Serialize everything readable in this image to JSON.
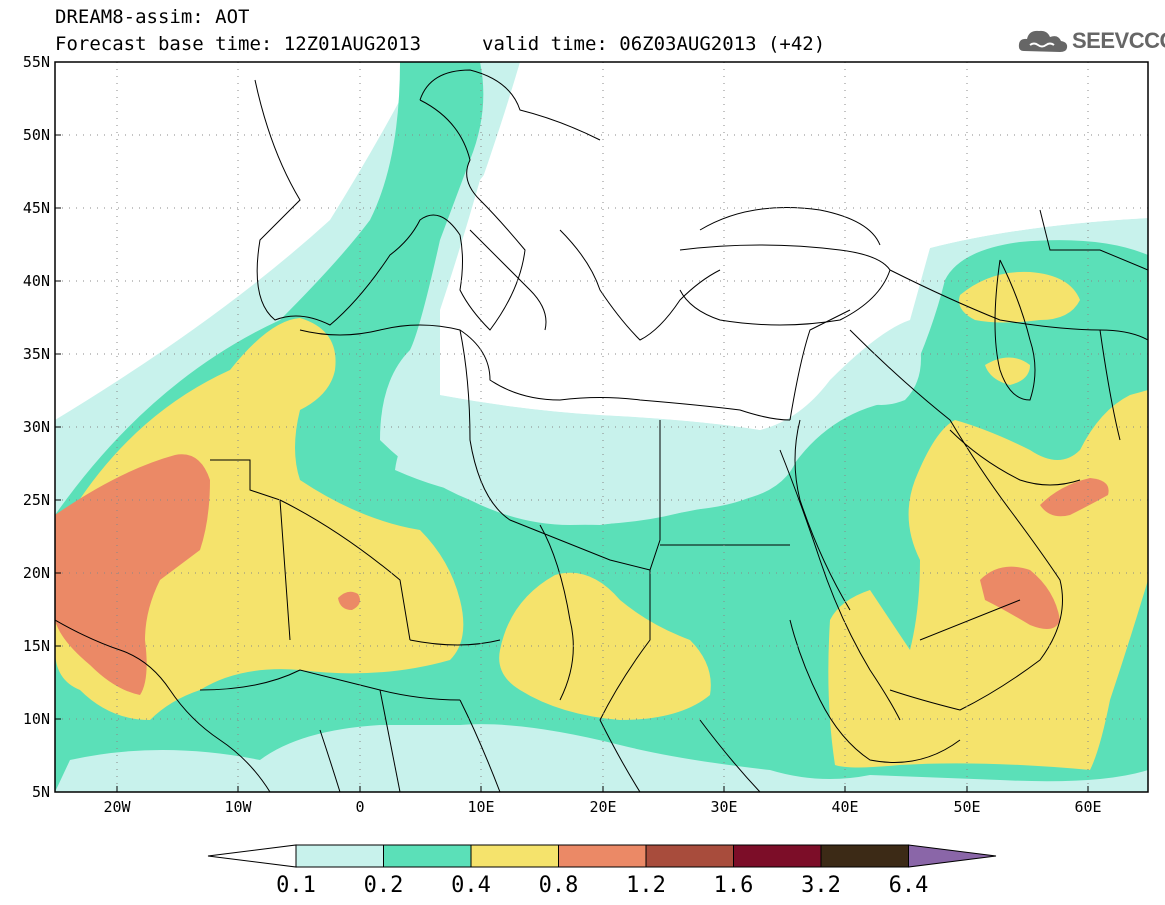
{
  "header": {
    "line1": "DREAM8-assim: AOT",
    "line2": "Forecast base time: 12Z01AUG2013",
    "line3": "valid time: 06Z03AUG2013 (+42)"
  },
  "logo": {
    "text": "SEEVCCC",
    "icon": "cloud-icon"
  },
  "map": {
    "lon_range": [
      -25,
      65
    ],
    "lat_range": [
      5,
      55
    ],
    "lon_ticks": [
      "20W",
      "10W",
      "0",
      "10E",
      "20E",
      "30E",
      "40E",
      "50E",
      "60E"
    ],
    "lat_ticks": [
      "55N",
      "50N",
      "45N",
      "40N",
      "35N",
      "30N",
      "25N",
      "20N",
      "15N",
      "10N",
      "5N"
    ],
    "grid": "dotted"
  },
  "colorbar": {
    "labels": [
      "0.1",
      "0.2",
      "0.4",
      "0.8",
      "1.2",
      "1.6",
      "3.2",
      "6.4"
    ],
    "colors": [
      "#ffffff",
      "#c8f2ec",
      "#5be0b8",
      "#f5e36c",
      "#eb8966",
      "#a84c3c",
      "#7c0d28",
      "#3c2a16",
      "#8a66a8"
    ]
  },
  "legend": {
    "below": "#ffffff",
    "c1": "#c8f2ec",
    "c2": "#5be0b8",
    "c3": "#f5e36c",
    "c4": "#eb8966"
  }
}
